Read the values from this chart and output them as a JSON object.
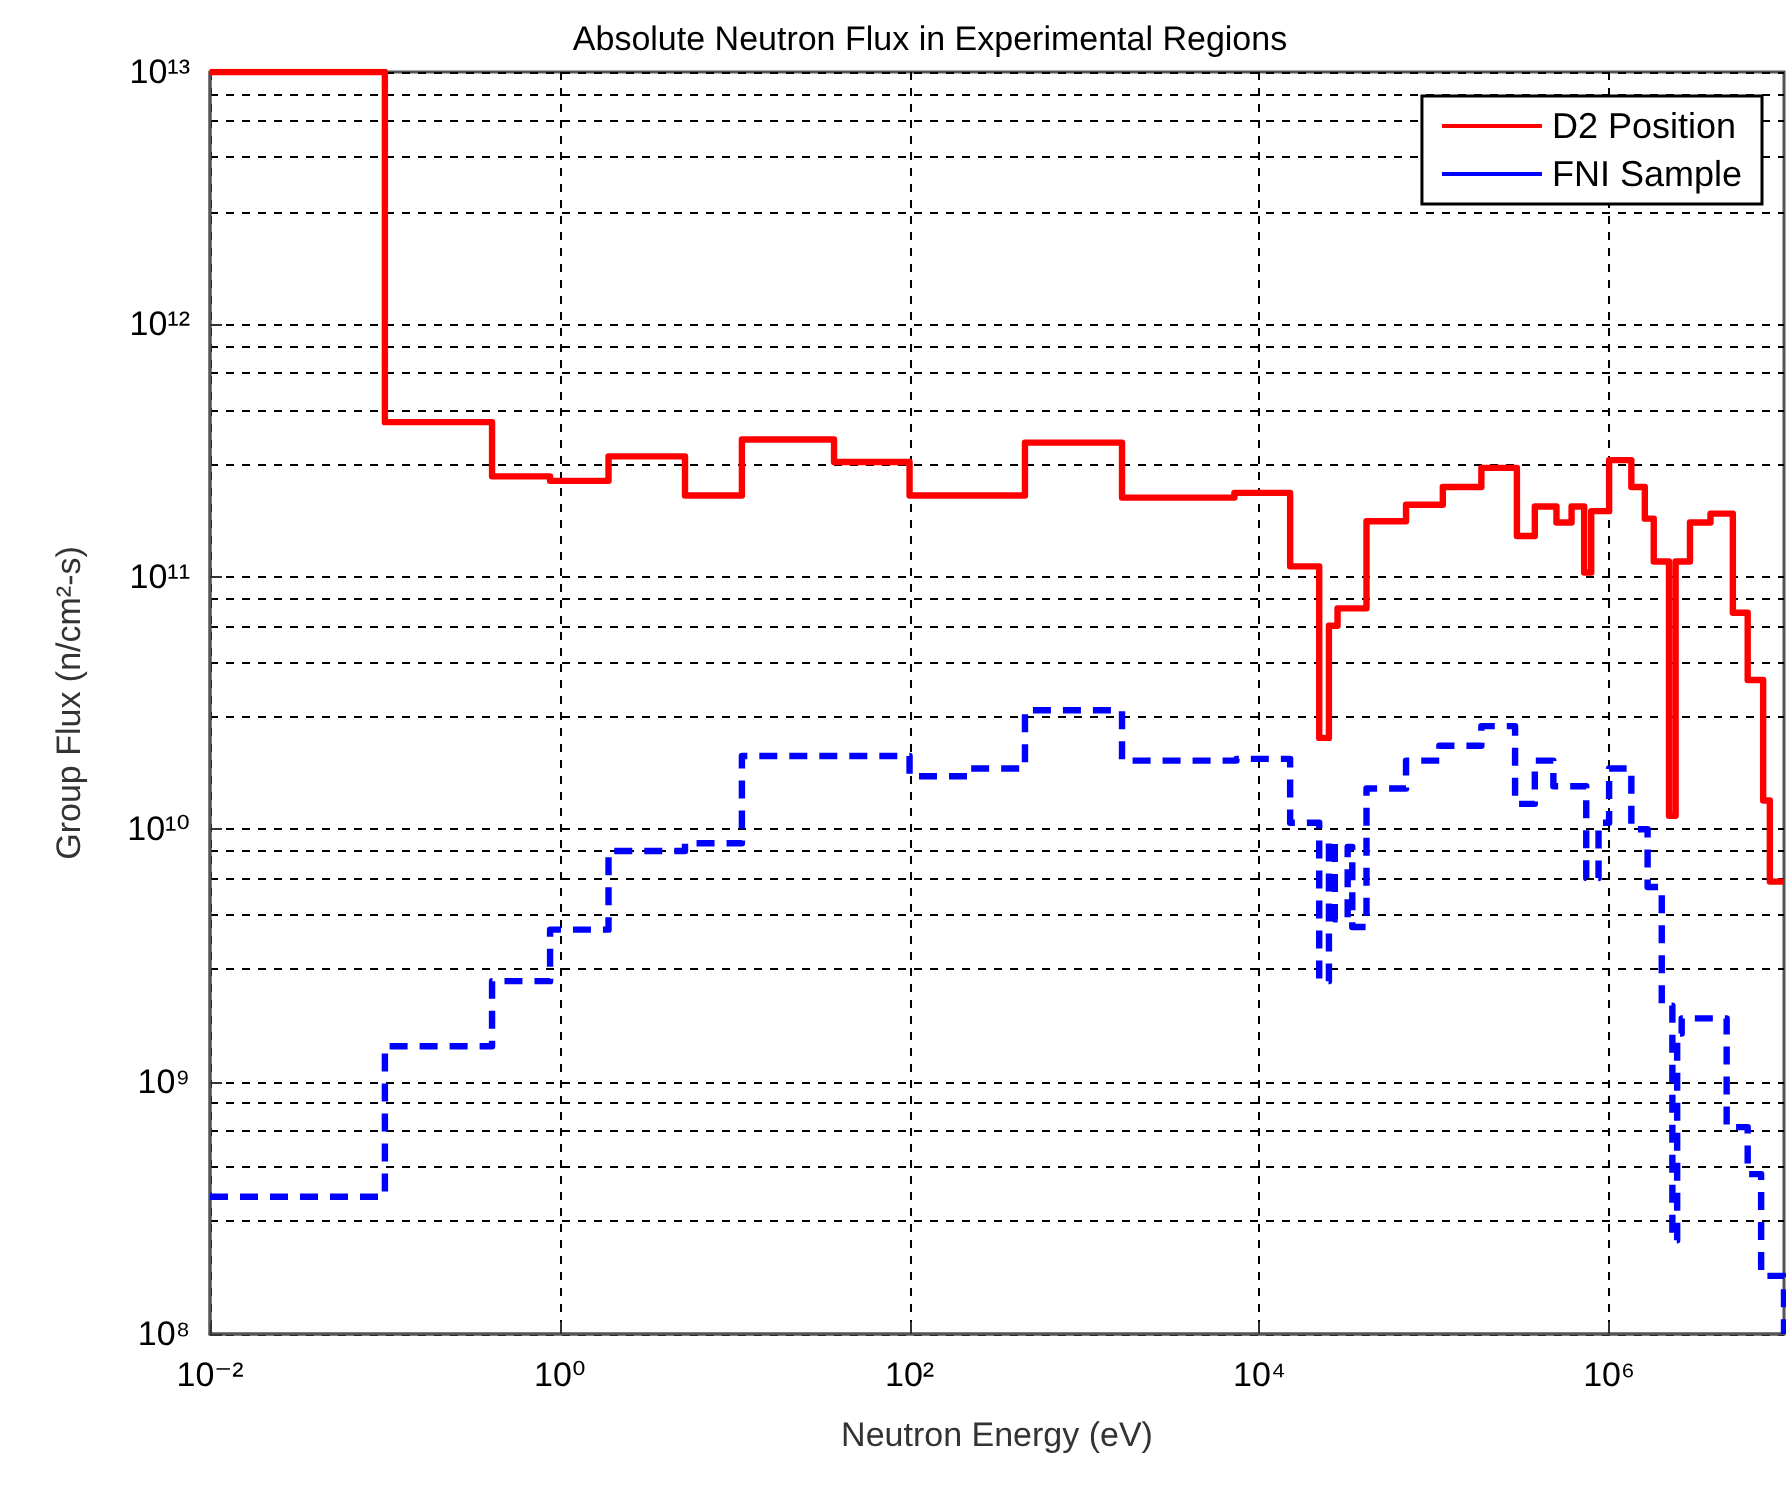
{
  "chart_data": {
    "type": "step",
    "title": "Absolute Neutron Flux in Experimental Regions",
    "xlabel": "Neutron Energy (eV)",
    "ylabel": "Group Flux (n/cm²-s)",
    "log": "xy",
    "grid": true,
    "legend": "top right",
    "marker": "none",
    "xlim": [
      0.01,
      10000000
    ],
    "ylim": [
      100000000,
      10000000000000
    ],
    "xticks": [
      {
        "value": 0.01,
        "label": "10⁻²"
      },
      {
        "value": 1,
        "label": "10⁰"
      },
      {
        "value": 100,
        "label": "10²"
      },
      {
        "value": 10000,
        "label": "10⁴"
      },
      {
        "value": 1000000,
        "label": "10⁶"
      }
    ],
    "yticks": [
      {
        "value": 100000000,
        "label": "10⁸"
      },
      {
        "value": 1000000000,
        "label": "10⁹"
      },
      {
        "value": 10000000000,
        "label": "10¹⁰"
      },
      {
        "value": 100000000000,
        "label": "10¹¹"
      },
      {
        "value": 1000000000000,
        "label": "10¹²"
      },
      {
        "value": 10000000000000,
        "label": "10¹³"
      }
    ],
    "series": [
      {
        "name": "D2 Position",
        "color": "#ff0000",
        "line_style": "solid",
        "x": [
          0.01,
          0.1,
          0.41,
          0.88,
          1.9,
          5.2,
          11,
          37,
          100,
          457,
          1640,
          7200,
          15000,
          22000,
          25000,
          28000,
          41000,
          69000,
          112000,
          186000,
          297000,
          376000,
          500000,
          610000,
          720000,
          790000,
          1000000,
          1340000,
          1600000,
          1800000,
          2200000,
          2400000,
          2900000,
          3800000,
          5100000,
          6200000,
          7600000,
          8300000,
          10000000
        ],
        "values": [
          10000000000000,
          410000000000,
          250000000000,
          240000000000,
          300000000000,
          210000000000,
          350000000000,
          285000000000,
          210000000000,
          340000000000,
          206000000000,
          215000000000,
          110000000000,
          23000000000,
          64000000000,
          75000000000,
          166000000000,
          193000000000,
          227000000000,
          270000000000,
          145000000000,
          190000000000,
          164000000000,
          190000000000,
          104000000000,
          182000000000,
          290000000000,
          227000000000,
          170000000000,
          115000000000,
          11300000000,
          115000000000,
          164000000000,
          178000000000,
          72000000000,
          39000000000,
          13000000000,
          6200000000,
          6200000000
        ]
      },
      {
        "name": "FNI Sample",
        "color": "#0000ff",
        "line_style": "dashed",
        "x": [
          0.01,
          0.1,
          0.41,
          0.88,
          1.9,
          5.2,
          11,
          100,
          214,
          457,
          1640,
          7400,
          15000,
          22000,
          25000,
          27000,
          32000,
          34000,
          41000,
          69000,
          107000,
          186000,
          290000,
          376000,
          480000,
          740000,
          870000,
          1000000,
          1340000,
          1660000,
          2000000,
          2300000,
          2450000,
          2600000,
          4700000,
          6200000,
          7400000,
          10000000
        ],
        "values": [
          350000000,
          1380000000,
          2500000000,
          4000000000,
          8200000000,
          8800000000,
          19500000000,
          16200000000,
          17400000000,
          29600000000,
          18700000000,
          19000000000,
          10600000000,
          2500000000,
          9000000000,
          4400000000,
          8500000000,
          4100000000,
          14500000000,
          18700000000,
          21400000000,
          25600000000,
          12600000000,
          18700000000,
          14800000000,
          6400000000,
          10600000000,
          17400000000,
          10000000000,
          5900000000,
          2000000000,
          235000000,
          1550000000,
          1780000000,
          660000000,
          430000000,
          170000000,
          100000000
        ]
      }
    ]
  }
}
